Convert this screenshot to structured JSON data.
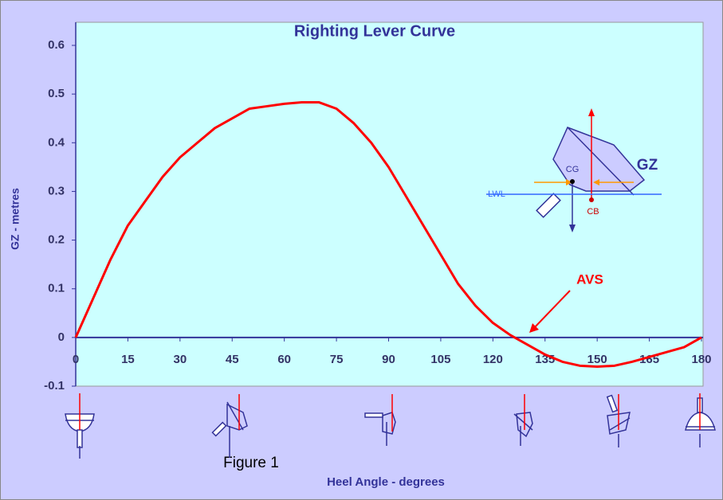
{
  "chart_data": {
    "type": "line",
    "title": "Righting Lever Curve",
    "x_label": "Heel Angle - degrees",
    "y_label": "GZ - metres",
    "x": [
      0,
      5,
      10,
      15,
      20,
      25,
      30,
      35,
      40,
      45,
      50,
      55,
      60,
      65,
      70,
      75,
      80,
      85,
      90,
      95,
      100,
      105,
      110,
      115,
      120,
      125,
      130,
      135,
      140,
      145,
      150,
      155,
      160,
      165,
      170,
      175,
      180
    ],
    "series": [
      {
        "name": "GZ",
        "color": "#ff0000",
        "values": [
          0,
          0.08,
          0.16,
          0.23,
          0.28,
          0.33,
          0.37,
          0.4,
          0.43,
          0.45,
          0.47,
          0.475,
          0.48,
          0.483,
          0.483,
          0.47,
          0.44,
          0.4,
          0.35,
          0.29,
          0.23,
          0.17,
          0.11,
          0.065,
          0.03,
          0.005,
          -0.015,
          -0.035,
          -0.05,
          -0.058,
          -0.06,
          -0.058,
          -0.05,
          -0.04,
          -0.03,
          -0.02,
          0
        ]
      }
    ],
    "xlim": [
      0,
      180
    ],
    "xticks": [
      0,
      15,
      30,
      45,
      60,
      75,
      90,
      105,
      120,
      135,
      150,
      165,
      180
    ],
    "ylim": [
      -0.1,
      0.6
    ],
    "yticks": [
      -0.1,
      0,
      0.1,
      0.2,
      0.3,
      0.4,
      0.5,
      0.6
    ],
    "annotations": [
      "AVS",
      "GZ",
      "CG",
      "CB",
      "LWL"
    ]
  },
  "caption": "Figure 1"
}
